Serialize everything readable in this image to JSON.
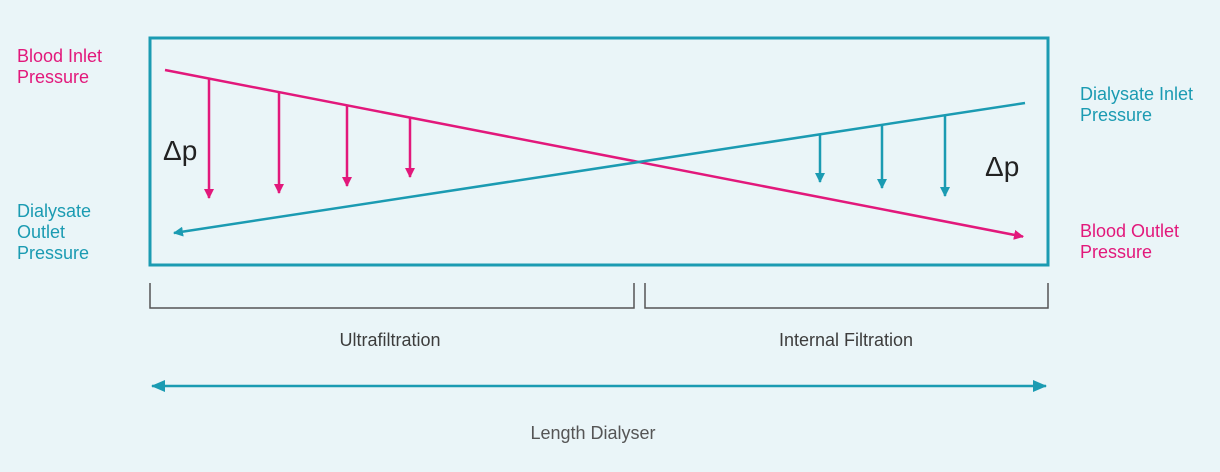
{
  "labels": {
    "blood_inlet": [
      "Blood Inlet",
      "Pressure"
    ],
    "dialysate_outlet": [
      "Dialysate",
      "Outlet",
      "Pressure"
    ],
    "dialysate_inlet": [
      "Dialysate Inlet",
      "Pressure"
    ],
    "blood_outlet": [
      "Blood Outlet",
      "Pressure"
    ],
    "delta_left": "Δp",
    "delta_right": "Δp",
    "ultrafiltration": "Ultrafiltration",
    "internal_filtration": "Internal Filtration",
    "length": "Length Dialyser"
  }
}
